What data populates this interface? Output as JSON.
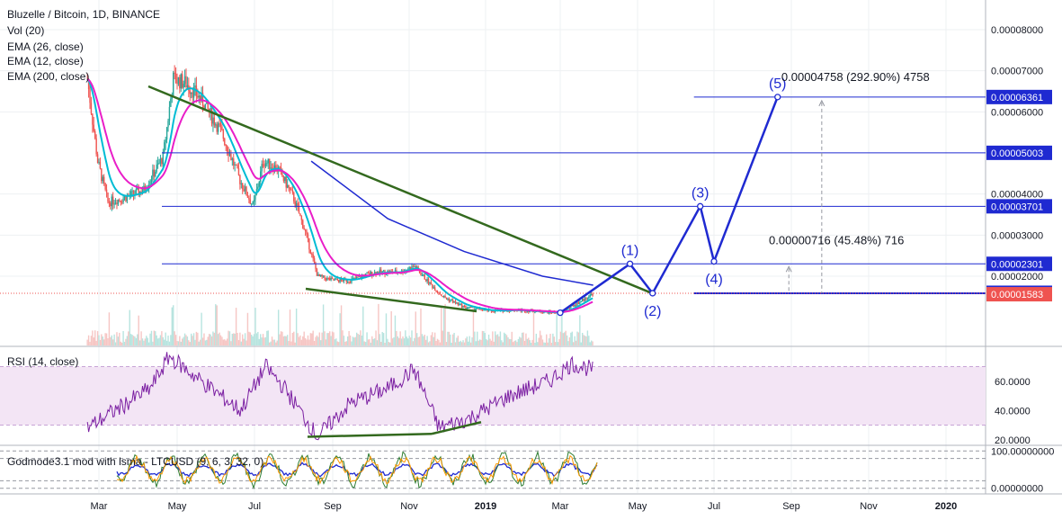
{
  "main_legend": {
    "title": "Bluzelle / Bitcoin, 1D, BINANCE",
    "vol": "Vol (20)",
    "ema26": "EMA (26, close)",
    "ema12": "EMA (12, close)",
    "ema200": "EMA (200, close)"
  },
  "rsi_legend": "RSI (14, close)",
  "godmode_legend": "Godmode3.1 mod with lsma - LTCUSD (9, 6, 3, 32, 0)",
  "colors": {
    "background": "#ffffff",
    "grid": "#eef0f3",
    "up": "#26a69a",
    "down": "#ef5350",
    "ema12": "#00bcd4",
    "ema26": "#e91ec8",
    "ema200": "#1f2ad1",
    "drawing": "#1f2ad1",
    "trendline": "#33691e",
    "rsi": "#7b1fa2",
    "rsi_band": "#f3e5f5",
    "current_price_label": "#ef5350",
    "level_label": "#1f2ad1"
  },
  "chart_data": [
    {
      "type": "candlestick",
      "title": "Bluzelle / Bitcoin, 1D, BINANCE",
      "x_ticks": [
        "Mar",
        "May",
        "Jul",
        "Sep",
        "Nov",
        "2019",
        "Mar",
        "May",
        "Jul",
        "Sep",
        "Nov",
        "2020"
      ],
      "y_ticks": [
        "0.00008000",
        "0.00007000",
        "0.00006000",
        "0.00004000",
        "0.00003000",
        "0.00002000"
      ],
      "ylim": [
        1.05e-05,
        8.7e-05
      ],
      "horizontal_levels": [
        {
          "value": 6.361e-05,
          "label": "0.00006361"
        },
        {
          "value": 5.003e-05,
          "label": "0.00005003"
        },
        {
          "value": 3.701e-05,
          "label": "0.00003701"
        },
        {
          "value": 2.301e-05,
          "label": "0.00002301"
        },
        {
          "value": 1.596e-05,
          "label": "0.00001596"
        }
      ],
      "current_price": {
        "value": 1.583e-05,
        "label": "0.00001583"
      },
      "elliott_wave": [
        {
          "label": "",
          "date": "2019-03-01",
          "value": 1.11e-05
        },
        {
          "label": "(1)",
          "date": "2019-04-25",
          "value": 2.301e-05
        },
        {
          "label": "(2)",
          "date": "2019-05-13",
          "value": 1.585e-05
        },
        {
          "label": "(3)",
          "date": "2019-06-20",
          "value": 3.701e-05
        },
        {
          "label": "(4)",
          "date": "2019-07-01",
          "value": 2.36e-05
        },
        {
          "label": "(5)",
          "date": "2019-08-21",
          "value": 6.361e-05
        }
      ],
      "annotations": [
        {
          "text": "0.00004758 (292.90%) 4758",
          "date": "2019-08-24",
          "value": 6.75e-05
        },
        {
          "text": "0.00000716 (45.48%) 716",
          "date": "2019-08-14",
          "value": 2.78e-05
        }
      ],
      "price_series_approx": [
        {
          "date": "2018-02-20",
          "value": 6.8e-05
        },
        {
          "date": "2018-02-28",
          "value": 4.8e-05
        },
        {
          "date": "2018-03-08",
          "value": 3.8e-05
        },
        {
          "date": "2018-03-20",
          "value": 3.9e-05
        },
        {
          "date": "2018-04-05",
          "value": 4.1e-05
        },
        {
          "date": "2018-04-20",
          "value": 4.9e-05
        },
        {
          "date": "2018-04-28",
          "value": 6.8e-05
        },
        {
          "date": "2018-05-08",
          "value": 6.7e-05
        },
        {
          "date": "2018-05-20",
          "value": 6.3e-05
        },
        {
          "date": "2018-06-05",
          "value": 5.5e-05
        },
        {
          "date": "2018-06-20",
          "value": 4.3e-05
        },
        {
          "date": "2018-06-30",
          "value": 3.7e-05
        },
        {
          "date": "2018-07-08",
          "value": 4.8e-05
        },
        {
          "date": "2018-07-20",
          "value": 4.6e-05
        },
        {
          "date": "2018-08-01",
          "value": 3.9e-05
        },
        {
          "date": "2018-08-10",
          "value": 3.1e-05
        },
        {
          "date": "2018-08-20",
          "value": 2e-05
        },
        {
          "date": "2018-09-01",
          "value": 1.9e-05
        },
        {
          "date": "2018-09-15",
          "value": 1.9e-05
        },
        {
          "date": "2018-10-05",
          "value": 2.1e-05
        },
        {
          "date": "2018-10-25",
          "value": 2.1e-05
        },
        {
          "date": "2018-11-05",
          "value": 2.25e-05
        },
        {
          "date": "2018-11-15",
          "value": 1.9e-05
        },
        {
          "date": "2018-11-28",
          "value": 1.5e-05
        },
        {
          "date": "2018-12-15",
          "value": 1.25e-05
        },
        {
          "date": "2019-01-05",
          "value": 1.15e-05
        },
        {
          "date": "2019-01-25",
          "value": 1.18e-05
        },
        {
          "date": "2019-02-15",
          "value": 1.13e-05
        },
        {
          "date": "2019-03-01",
          "value": 1.11e-05
        },
        {
          "date": "2019-03-15",
          "value": 1.35e-05
        },
        {
          "date": "2019-03-27",
          "value": 1.58e-05
        }
      ],
      "ema200_approx": [
        {
          "date": "2018-08-15",
          "value": 4.8e-05
        },
        {
          "date": "2018-10-15",
          "value": 3.4e-05
        },
        {
          "date": "2018-12-15",
          "value": 2.6e-05
        },
        {
          "date": "2019-02-15",
          "value": 2e-05
        },
        {
          "date": "2019-03-27",
          "value": 1.78e-05
        }
      ]
    },
    {
      "type": "line",
      "title": "RSI (14, close)",
      "y_ticks": [
        "60.0000",
        "40.0000",
        "20.0000"
      ],
      "ylim": [
        18,
        82
      ],
      "band": [
        30,
        70
      ],
      "values_approx": [
        {
          "date": "2018-02-20",
          "value": 28
        },
        {
          "date": "2018-03-10",
          "value": 38
        },
        {
          "date": "2018-04-10",
          "value": 55
        },
        {
          "date": "2018-04-25",
          "value": 77
        },
        {
          "date": "2018-05-20",
          "value": 60
        },
        {
          "date": "2018-06-20",
          "value": 40
        },
        {
          "date": "2018-07-10",
          "value": 70
        },
        {
          "date": "2018-07-25",
          "value": 55
        },
        {
          "date": "2018-08-20",
          "value": 22
        },
        {
          "date": "2018-09-15",
          "value": 45
        },
        {
          "date": "2018-10-15",
          "value": 55
        },
        {
          "date": "2018-11-05",
          "value": 68
        },
        {
          "date": "2018-11-25",
          "value": 28
        },
        {
          "date": "2018-12-20",
          "value": 35
        },
        {
          "date": "2019-01-20",
          "value": 50
        },
        {
          "date": "2019-02-20",
          "value": 60
        },
        {
          "date": "2019-03-10",
          "value": 72
        },
        {
          "date": "2019-03-27",
          "value": 68
        }
      ]
    },
    {
      "type": "line",
      "title": "Godmode3.1 mod with lsma - LTCUSD (9, 6, 3, 32, 0)",
      "y_ticks": [
        "100.00000000",
        "0.00000000"
      ],
      "ylim": [
        -8,
        108
      ]
    }
  ]
}
